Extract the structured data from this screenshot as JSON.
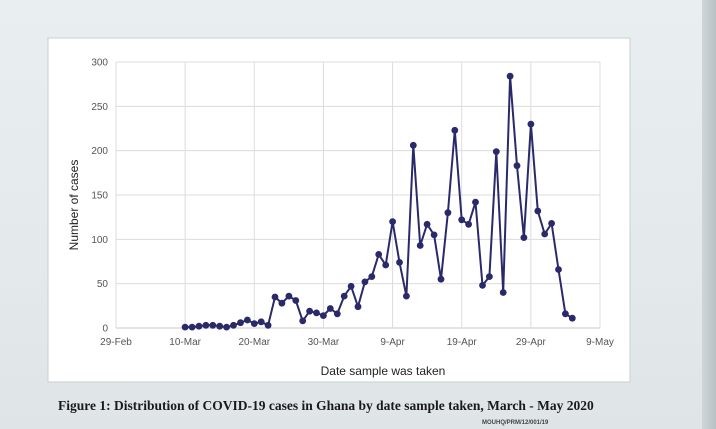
{
  "caption": "Figure 1: Distribution of COVID-19 cases in Ghana by date sample taken, March - May 2020",
  "footer_code": "MOUHQ/PRM/12/001/19",
  "chart_data": {
    "type": "line",
    "title": "",
    "xlabel": "Date sample was taken",
    "ylabel": "Number of cases",
    "ylim": [
      0,
      300
    ],
    "yticks": [
      0,
      50,
      100,
      150,
      200,
      250,
      300
    ],
    "xticks": [
      "29-Feb",
      "10-Mar",
      "20-Mar",
      "30-Mar",
      "9-Apr",
      "19-Apr",
      "29-Apr",
      "9-May"
    ],
    "xlim": [
      "2020-02-29",
      "2020-05-09"
    ],
    "grid": true,
    "line_color": "#2a2a6a",
    "marker_color": "#2a2a6a",
    "series": [
      {
        "x": [
          "2020-03-10",
          "2020-03-11",
          "2020-03-12",
          "2020-03-13",
          "2020-03-14",
          "2020-03-15",
          "2020-03-16",
          "2020-03-17",
          "2020-03-18",
          "2020-03-19",
          "2020-03-20",
          "2020-03-21",
          "2020-03-22",
          "2020-03-23",
          "2020-03-24",
          "2020-03-25",
          "2020-03-26",
          "2020-03-27",
          "2020-03-28",
          "2020-03-29",
          "2020-03-30",
          "2020-03-31",
          "2020-04-01",
          "2020-04-02",
          "2020-04-03",
          "2020-04-04",
          "2020-04-05",
          "2020-04-06",
          "2020-04-07",
          "2020-04-08",
          "2020-04-09",
          "2020-04-10",
          "2020-04-11",
          "2020-04-12",
          "2020-04-13",
          "2020-04-14",
          "2020-04-15",
          "2020-04-16",
          "2020-04-17",
          "2020-04-18",
          "2020-04-19",
          "2020-04-20",
          "2020-04-21",
          "2020-04-22",
          "2020-04-23",
          "2020-04-24",
          "2020-04-25",
          "2020-04-26",
          "2020-04-27",
          "2020-04-28",
          "2020-04-29",
          "2020-04-30",
          "2020-05-01",
          "2020-05-02",
          "2020-05-03",
          "2020-05-04",
          "2020-05-05"
        ],
        "y": [
          1,
          1,
          2,
          3,
          3,
          2,
          1,
          3,
          6,
          9,
          5,
          7,
          3,
          35,
          28,
          36,
          31,
          8,
          19,
          17,
          14,
          22,
          16,
          36,
          47,
          24,
          52,
          58,
          83,
          71,
          120,
          74,
          36,
          206,
          93,
          117,
          105,
          55,
          130,
          223,
          122,
          117,
          142,
          48,
          58,
          199,
          40,
          284,
          183,
          102,
          230,
          132,
          106,
          118,
          66,
          16,
          11
        ]
      }
    ]
  }
}
